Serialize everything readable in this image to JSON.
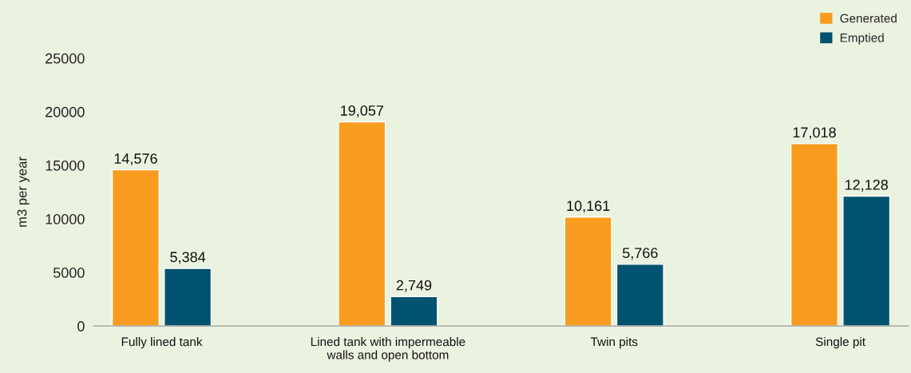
{
  "chart_data": {
    "type": "bar",
    "ylabel": "m3 per year",
    "categories": [
      "Fully lined tank",
      "Lined tank with impermeable\nwalls and open bottom",
      "Twin pits",
      "Single pit"
    ],
    "series": [
      {
        "name": "Generated",
        "color": "#f89c1f",
        "values": [
          14576,
          19057,
          10161,
          17018
        ],
        "value_labels": [
          "14,576",
          "19,057",
          "10,161",
          "17,018"
        ]
      },
      {
        "name": "Emptied",
        "color": "#00536f",
        "values": [
          5384,
          2749,
          5766,
          12128
        ],
        "value_labels": [
          "5,384",
          "2,749",
          "5,766",
          "12,128"
        ]
      }
    ],
    "ylim": [
      0,
      25000
    ],
    "yticks": [
      0,
      5000,
      10000,
      15000,
      20000,
      25000
    ],
    "grid": false,
    "legend": "top right"
  }
}
